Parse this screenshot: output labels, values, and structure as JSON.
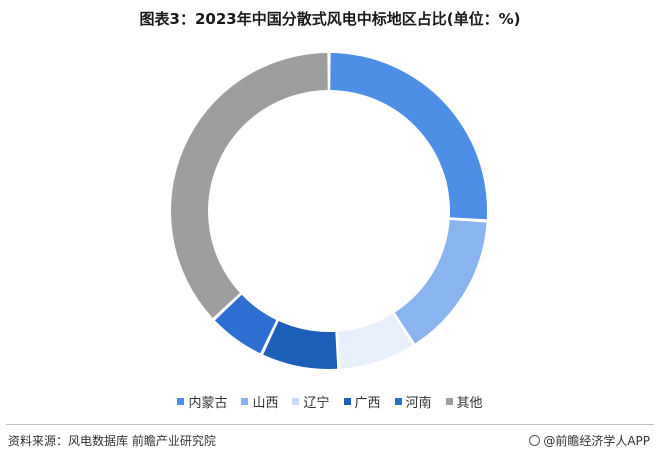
{
  "header": {
    "title": "图表3：2023年中国分散式风电中标地区占比(单位：%)"
  },
  "chart_data": {
    "type": "pie",
    "title": "图表3：2023年中国分散式风电中标地区占比(单位：%)",
    "categories": [
      "内蒙古",
      "山西",
      "辽宁",
      "广西",
      "河南",
      "其他"
    ],
    "values": [
      26,
      15,
      8,
      8,
      6,
      37
    ],
    "colors": [
      "#4d8ee6",
      "#89b4ef",
      "#e8f0fb",
      "#1c5fb8",
      "#2f6fd1",
      "#9e9e9e"
    ],
    "donut": true,
    "legend": "bottom"
  },
  "footer": {
    "source": "资料来源：风电数据库 前瞻产业研究院",
    "brand": "@前瞻经济学人APP",
    "brand_icon": "circle-logo-icon"
  }
}
